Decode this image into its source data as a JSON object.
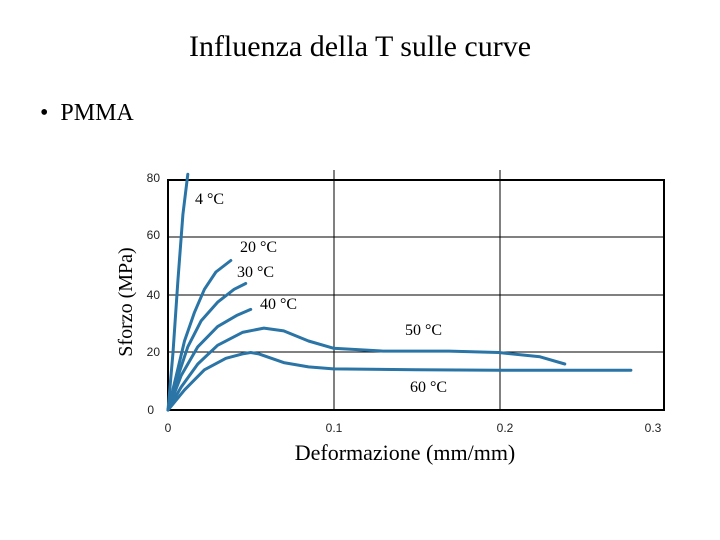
{
  "slide": {
    "title": "Influenza della T sulle curve",
    "bullet": "PMMA"
  },
  "chart_data": {
    "type": "line",
    "xlabel": "Deformazione (mm/mm)",
    "ylabel": "Sforzo (MPa)",
    "xlim": [
      0,
      0.3
    ],
    "ylim": [
      0,
      80
    ],
    "x_ticks": [
      "0",
      "0.1",
      "0.2",
      "0.3"
    ],
    "y_ticks": [
      "0",
      "20",
      "40",
      "60",
      "80"
    ],
    "grid": true,
    "line_color": "#2a74a6",
    "series": [
      {
        "name": "4 °C",
        "points": [
          [
            0,
            0
          ],
          [
            0.003,
            20
          ],
          [
            0.006,
            45
          ],
          [
            0.009,
            68
          ],
          [
            0.012,
            82
          ]
        ]
      },
      {
        "name": "20 °C",
        "points": [
          [
            0,
            0
          ],
          [
            0.005,
            12
          ],
          [
            0.01,
            24
          ],
          [
            0.016,
            34
          ],
          [
            0.022,
            42
          ],
          [
            0.029,
            48
          ],
          [
            0.038,
            52
          ]
        ]
      },
      {
        "name": "30 °C",
        "points": [
          [
            0,
            0
          ],
          [
            0.005,
            10
          ],
          [
            0.012,
            22
          ],
          [
            0.02,
            31
          ],
          [
            0.03,
            37.5
          ],
          [
            0.04,
            42
          ],
          [
            0.047,
            44
          ]
        ]
      },
      {
        "name": "40 °C",
        "points": [
          [
            0,
            0
          ],
          [
            0.008,
            12
          ],
          [
            0.018,
            22
          ],
          [
            0.03,
            29
          ],
          [
            0.042,
            33
          ],
          [
            0.05,
            35
          ]
        ]
      },
      {
        "name": "50 °C",
        "points": [
          [
            0,
            0
          ],
          [
            0.008,
            8
          ],
          [
            0.018,
            16
          ],
          [
            0.03,
            22.5
          ],
          [
            0.045,
            27
          ],
          [
            0.058,
            28.5
          ],
          [
            0.07,
            27.5
          ],
          [
            0.085,
            24
          ],
          [
            0.1,
            21.5
          ],
          [
            0.13,
            20.5
          ],
          [
            0.17,
            20.5
          ],
          [
            0.2,
            20
          ],
          [
            0.225,
            18.5
          ],
          [
            0.24,
            16
          ]
        ]
      },
      {
        "name": "60 °C",
        "points": [
          [
            0,
            0
          ],
          [
            0.01,
            7
          ],
          [
            0.022,
            14
          ],
          [
            0.035,
            18
          ],
          [
            0.045,
            19.5
          ],
          [
            0.05,
            20
          ],
          [
            0.055,
            19.5
          ],
          [
            0.07,
            16.5
          ],
          [
            0.085,
            15
          ],
          [
            0.1,
            14.3
          ],
          [
            0.15,
            14
          ],
          [
            0.2,
            13.8
          ],
          [
            0.28,
            13.8
          ]
        ]
      }
    ]
  }
}
